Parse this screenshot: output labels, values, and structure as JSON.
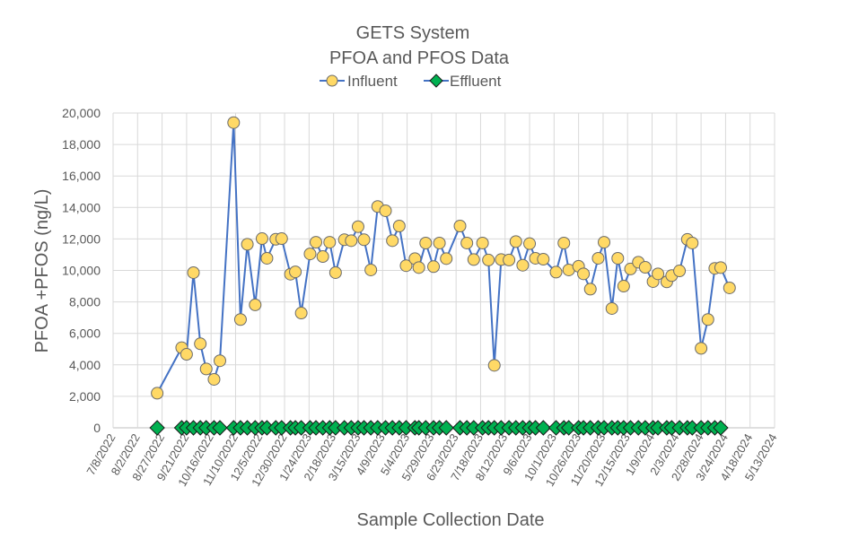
{
  "chart_data": {
    "type": "line",
    "title": "GETS System",
    "subtitle": "PFOA and PFOS Data",
    "xlabel": "Sample Collection Date",
    "ylabel": "PFOA +PFOS (ng/L)",
    "ylim": [
      0,
      20000
    ],
    "yticks": [
      "0",
      "2,000",
      "4,000",
      "6,000",
      "8,000",
      "10,000",
      "12,000",
      "14,000",
      "16,000",
      "18,000",
      "20,000"
    ],
    "xlim": [
      "7/8/2022",
      "5/13/2024"
    ],
    "xticks": [
      "7/8/2022",
      "8/2/2022",
      "8/27/2022",
      "9/21/2022",
      "10/16/2022",
      "11/10/2022",
      "12/5/2022",
      "12/30/2022",
      "1/24/2023",
      "2/18/2023",
      "3/15/2023",
      "4/9/2023",
      "5/4/2023",
      "5/29/2023",
      "6/23/2023",
      "7/18/2023",
      "8/12/2023",
      "9/6/2023",
      "10/1/2023",
      "10/26/2023",
      "11/20/2023",
      "12/15/2023",
      "1/9/2024",
      "2/3/2024",
      "2/28/2024",
      "3/24/2024",
      "4/18/2024",
      "5/13/2024"
    ],
    "grid": true,
    "legend_position": "top",
    "colors": {
      "influent_line": "#4472C4",
      "influent_marker": "#FFD966",
      "effluent_marker": "#00B050"
    },
    "series": [
      {
        "name": "Influent",
        "marker": "circle",
        "x": [
          "8/22/2022",
          "9/16/2022",
          "9/21/2022",
          "9/28/2022",
          "10/5/2022",
          "10/11/2022",
          "10/19/2022",
          "10/25/2022",
          "11/8/2022",
          "11/15/2022",
          "11/22/2022",
          "11/30/2022",
          "12/7/2022",
          "12/12/2022",
          "12/21/2022",
          "12/27/2022",
          "1/5/2023",
          "1/10/2023",
          "1/16/2023",
          "1/25/2023",
          "1/31/2023",
          "2/7/2023",
          "2/14/2023",
          "2/20/2023",
          "3/1/2023",
          "3/8/2023",
          "3/15/2023",
          "3/21/2023",
          "3/28/2023",
          "4/4/2023",
          "4/12/2023",
          "4/19/2023",
          "4/26/2023",
          "5/3/2023",
          "5/12/2023",
          "5/16/2023",
          "5/23/2023",
          "5/31/2023",
          "6/6/2023",
          "6/13/2023",
          "6/27/2023",
          "7/4/2023",
          "7/11/2023",
          "7/20/2023",
          "7/26/2023",
          "8/1/2023",
          "8/8/2023",
          "8/16/2023",
          "8/23/2023",
          "8/30/2023",
          "9/6/2023",
          "9/12/2023",
          "9/20/2023",
          "10/3/2023",
          "10/11/2023",
          "10/16/2023",
          "10/26/2023",
          "10/31/2023",
          "11/7/2023",
          "11/15/2023",
          "11/21/2023",
          "11/29/2023",
          "12/5/2023",
          "12/11/2023",
          "12/18/2023",
          "12/26/2023",
          "1/2/2024",
          "1/10/2024",
          "1/15/2024",
          "1/24/2024",
          "1/29/2024",
          "2/6/2024",
          "2/14/2024",
          "2/19/2024",
          "2/28/2024",
          "3/6/2024",
          "3/13/2024",
          "3/19/2024",
          "3/28/2024"
        ],
        "values": [
          2200,
          5090,
          4670,
          9860,
          5340,
          3740,
          3080,
          4260,
          19390,
          6880,
          11660,
          7810,
          12020,
          10770,
          11980,
          12020,
          9760,
          9910,
          7290,
          11050,
          11790,
          10880,
          11790,
          9860,
          11950,
          11890,
          12780,
          11950,
          10030,
          14060,
          13790,
          11890,
          12820,
          10300,
          10750,
          10180,
          11740,
          10240,
          11740,
          10750,
          12820,
          11740,
          10690,
          11740,
          10660,
          3970,
          10690,
          10660,
          11830,
          10330,
          11700,
          10770,
          10710,
          9890,
          11740,
          10030,
          10260,
          9780,
          8810,
          10770,
          11790,
          7580,
          10770,
          9000,
          10090,
          10520,
          10200,
          9290,
          9780,
          9270,
          9670,
          9970,
          11970,
          11740,
          5050,
          6880,
          10130,
          10180,
          8890
        ]
      },
      {
        "name": "Effluent",
        "marker": "diamond",
        "x": [
          "8/22/2022",
          "9/16/2022",
          "9/21/2022",
          "9/28/2022",
          "10/5/2022",
          "10/11/2022",
          "10/19/2022",
          "10/25/2022",
          "11/8/2022",
          "11/15/2022",
          "11/22/2022",
          "11/30/2022",
          "12/7/2022",
          "12/12/2022",
          "12/21/2022",
          "12/27/2022",
          "1/5/2023",
          "1/10/2023",
          "1/16/2023",
          "1/25/2023",
          "1/31/2023",
          "2/7/2023",
          "2/14/2023",
          "2/20/2023",
          "3/1/2023",
          "3/8/2023",
          "3/15/2023",
          "3/21/2023",
          "3/28/2023",
          "4/4/2023",
          "4/12/2023",
          "4/19/2023",
          "4/26/2023",
          "5/3/2023",
          "5/12/2023",
          "5/16/2023",
          "5/23/2023",
          "5/31/2023",
          "6/6/2023",
          "6/13/2023",
          "6/27/2023",
          "7/4/2023",
          "7/11/2023",
          "7/20/2023",
          "7/26/2023",
          "8/1/2023",
          "8/8/2023",
          "8/16/2023",
          "8/23/2023",
          "8/30/2023",
          "9/6/2023",
          "9/12/2023",
          "9/20/2023",
          "10/3/2023",
          "10/11/2023",
          "10/16/2023",
          "10/26/2023",
          "10/31/2023",
          "11/7/2023",
          "11/15/2023",
          "11/21/2023",
          "11/29/2023",
          "12/5/2023",
          "12/11/2023",
          "12/18/2023",
          "12/26/2023",
          "1/2/2024",
          "1/10/2024",
          "1/15/2024",
          "1/24/2024",
          "1/29/2024",
          "2/6/2024",
          "2/14/2024",
          "2/19/2024",
          "2/28/2024",
          "3/6/2024",
          "3/13/2024",
          "3/19/2024"
        ],
        "values": [
          0,
          0,
          0,
          0,
          0,
          0,
          0,
          0,
          0,
          0,
          0,
          0,
          0,
          0,
          0,
          0,
          0,
          0,
          0,
          0,
          0,
          0,
          0,
          0,
          0,
          0,
          0,
          0,
          0,
          0,
          0,
          0,
          0,
          0,
          0,
          0,
          0,
          0,
          0,
          0,
          0,
          0,
          0,
          0,
          0,
          0,
          0,
          0,
          0,
          0,
          0,
          0,
          0,
          0,
          0,
          0,
          0,
          0,
          0,
          0,
          0,
          0,
          0,
          0,
          0,
          0,
          0,
          0,
          0,
          0,
          0,
          0,
          0,
          0,
          0,
          0,
          0,
          0
        ]
      }
    ]
  }
}
